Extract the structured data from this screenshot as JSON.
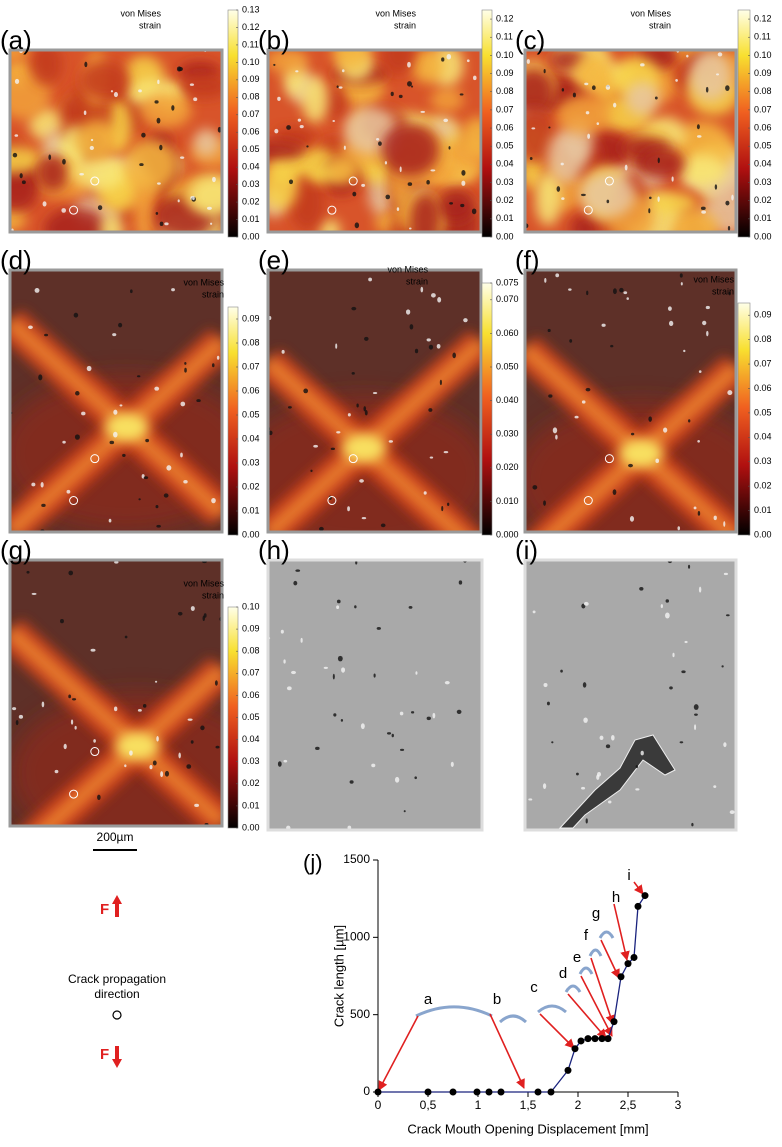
{
  "panels": [
    {
      "label": "(a)",
      "colorbar": {
        "title": [
          "von Mises",
          "strain"
        ],
        "clim": [
          0,
          0.13
        ],
        "ticks": [
          {
            "value": 0,
            "label": "0.00"
          },
          {
            "value": 0.01,
            "label": "0.01"
          },
          {
            "value": 0.02,
            "label": "0.02"
          },
          {
            "value": 0.03,
            "label": "0.03"
          },
          {
            "value": 0.04,
            "label": "0.04"
          },
          {
            "value": 0.05,
            "label": "0.05"
          },
          {
            "value": 0.06,
            "label": "0.06"
          },
          {
            "value": 0.07,
            "label": "0.07"
          },
          {
            "value": 0.08,
            "label": "0.08"
          },
          {
            "value": 0.09,
            "label": "0.09"
          },
          {
            "value": 0.1,
            "label": "0.10"
          },
          {
            "value": 0.11,
            "label": "0.11"
          },
          {
            "value": 0.12,
            "label": "0.12"
          },
          {
            "value": 0.13,
            "label": "0.13"
          }
        ]
      }
    },
    {
      "label": "(b)",
      "colorbar": {
        "title": [
          "von Mises",
          "strain"
        ],
        "clim": [
          0,
          0.125
        ],
        "ticks": [
          {
            "value": 0,
            "label": "0.00"
          },
          {
            "value": 0.01,
            "label": "0.01"
          },
          {
            "value": 0.02,
            "label": "0.02"
          },
          {
            "value": 0.03,
            "label": "0.03"
          },
          {
            "value": 0.04,
            "label": "0.04"
          },
          {
            "value": 0.05,
            "label": "0.05"
          },
          {
            "value": 0.06,
            "label": "0.06"
          },
          {
            "value": 0.07,
            "label": "0.07"
          },
          {
            "value": 0.08,
            "label": "0.08"
          },
          {
            "value": 0.09,
            "label": "0.09"
          },
          {
            "value": 0.1,
            "label": "0.10"
          },
          {
            "value": 0.11,
            "label": "0.11"
          },
          {
            "value": 0.12,
            "label": "0.12"
          }
        ]
      }
    },
    {
      "label": "(c)",
      "colorbar": {
        "title": [
          "von Mises",
          "strain"
        ],
        "clim": [
          0,
          0.125
        ],
        "ticks": [
          {
            "value": 0,
            "label": "0.00"
          },
          {
            "value": 0.01,
            "label": "0.01"
          },
          {
            "value": 0.02,
            "label": "0.02"
          },
          {
            "value": 0.03,
            "label": "0.03"
          },
          {
            "value": 0.04,
            "label": "0.04"
          },
          {
            "value": 0.05,
            "label": "0.05"
          },
          {
            "value": 0.06,
            "label": "0.06"
          },
          {
            "value": 0.07,
            "label": "0.07"
          },
          {
            "value": 0.08,
            "label": "0.08"
          },
          {
            "value": 0.09,
            "label": "0.09"
          },
          {
            "value": 0.1,
            "label": "0.10"
          },
          {
            "value": 0.11,
            "label": "0.11"
          },
          {
            "value": 0.12,
            "label": "0.12"
          }
        ]
      }
    },
    {
      "label": "(d)",
      "colorbar": {
        "title": [
          "von Mises",
          "strain"
        ],
        "clim": [
          0,
          0.095
        ],
        "ticks": [
          {
            "value": 0,
            "label": "0.00"
          },
          {
            "value": 0.01,
            "label": "0.01"
          },
          {
            "value": 0.02,
            "label": "0.02"
          },
          {
            "value": 0.03,
            "label": "0.03"
          },
          {
            "value": 0.04,
            "label": "0.04"
          },
          {
            "value": 0.05,
            "label": "0.05"
          },
          {
            "value": 0.06,
            "label": "0.06"
          },
          {
            "value": 0.07,
            "label": "0.07"
          },
          {
            "value": 0.08,
            "label": "0.08"
          },
          {
            "value": 0.09,
            "label": "0.09"
          }
        ]
      }
    },
    {
      "label": "(e)",
      "colorbar": {
        "title": [
          "von Mises",
          "strain"
        ],
        "clim": [
          0,
          0.075
        ],
        "ticks": [
          {
            "value": 0,
            "label": "0.000"
          },
          {
            "value": 0.01,
            "label": "0.010"
          },
          {
            "value": 0.02,
            "label": "0.020"
          },
          {
            "value": 0.03,
            "label": "0.030"
          },
          {
            "value": 0.04,
            "label": "0.040"
          },
          {
            "value": 0.05,
            "label": "0.050"
          },
          {
            "value": 0.06,
            "label": "0.060"
          },
          {
            "value": 0.07,
            "label": "0.070"
          },
          {
            "value": 0.075,
            "label": "0.075"
          }
        ]
      }
    },
    {
      "label": "(f)",
      "colorbar": {
        "title": [
          "von Mises",
          "strain"
        ],
        "clim": [
          0,
          0.095
        ],
        "ticks": [
          {
            "value": 0,
            "label": "0.00"
          },
          {
            "value": 0.01,
            "label": "0.01"
          },
          {
            "value": 0.02,
            "label": "0.02"
          },
          {
            "value": 0.03,
            "label": "0.03"
          },
          {
            "value": 0.04,
            "label": "0.04"
          },
          {
            "value": 0.05,
            "label": "0.05"
          },
          {
            "value": 0.06,
            "label": "0.06"
          },
          {
            "value": 0.07,
            "label": "0.07"
          },
          {
            "value": 0.08,
            "label": "0.08"
          },
          {
            "value": 0.09,
            "label": "0.09"
          }
        ]
      }
    },
    {
      "label": "(g)",
      "colorbar": {
        "title": [
          "von Mises",
          "strain"
        ],
        "clim": [
          0,
          0.1
        ],
        "ticks": [
          {
            "value": 0,
            "label": "0.00"
          },
          {
            "value": 0.01,
            "label": "0.01"
          },
          {
            "value": 0.02,
            "label": "0.02"
          },
          {
            "value": 0.03,
            "label": "0.03"
          },
          {
            "value": 0.04,
            "label": "0.04"
          },
          {
            "value": 0.05,
            "label": "0.05"
          },
          {
            "value": 0.06,
            "label": "0.06"
          },
          {
            "value": 0.07,
            "label": "0.07"
          },
          {
            "value": 0.08,
            "label": "0.08"
          },
          {
            "value": 0.09,
            "label": "0.09"
          },
          {
            "value": 0.1,
            "label": "0.10"
          }
        ]
      }
    },
    {
      "label": "(h)"
    },
    {
      "label": "(i)"
    }
  ],
  "scale_bar": "200µm",
  "force_labels": [
    "F",
    "F"
  ],
  "direction_label": [
    "Crack propagation",
    "direction"
  ],
  "chart_data": {
    "type": "line",
    "title": "(j)",
    "x_label": "Crack Mouth Opening Displacement [mm]",
    "y_label": "Crack length [µm]",
    "x": [
      0,
      0.5,
      0.75,
      0.99,
      1.11,
      1.23,
      1.6,
      1.73,
      1.9,
      1.97,
      2.03,
      2.1,
      2.17,
      2.24,
      2.3,
      2.36,
      2.43,
      2.5,
      2.56,
      2.6,
      2.67
    ],
    "values": [
      0,
      0,
      0,
      0,
      0,
      0,
      0,
      0,
      140,
      280,
      330,
      345,
      345,
      345,
      345,
      455,
      745,
      830,
      870,
      1200,
      1270
    ],
    "color": "#1a237e",
    "marker_color": "#000000",
    "arrow_color": "#e02020",
    "xlim": [
      0,
      3
    ],
    "ylim": [
      0,
      1500
    ],
    "xticks": [
      0,
      {
        "value": 0.5,
        "label": "0,5"
      },
      1,
      {
        "value": 1.5,
        "label": "1,5"
      },
      2,
      {
        "value": 2.5,
        "label": "2,5"
      },
      3
    ],
    "yticks": [
      0,
      500,
      1000,
      1500
    ],
    "annotations": [
      "a",
      "b",
      "c",
      "d",
      "e",
      "f",
      "g",
      "h",
      "i"
    ]
  }
}
